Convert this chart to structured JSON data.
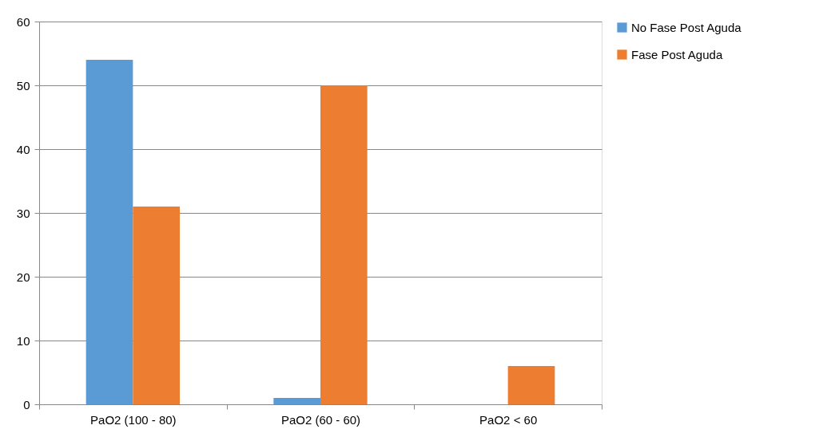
{
  "chart_data": {
    "type": "bar",
    "categories": [
      "PaO2 (100 - 80)",
      "PaO2 (60 - 60)",
      "PaO2 < 60"
    ],
    "series": [
      {
        "name": "No Fase Post Aguda",
        "color": "#5b9bd5",
        "values": [
          54,
          1,
          0
        ]
      },
      {
        "name": "Fase Post Aguda",
        "color": "#ed7d31",
        "values": [
          31,
          50,
          6
        ]
      }
    ],
    "ylim": [
      0,
      60
    ],
    "yticks": [
      0,
      10,
      20,
      30,
      40,
      50,
      60
    ],
    "grid": "y",
    "legend": "right"
  }
}
